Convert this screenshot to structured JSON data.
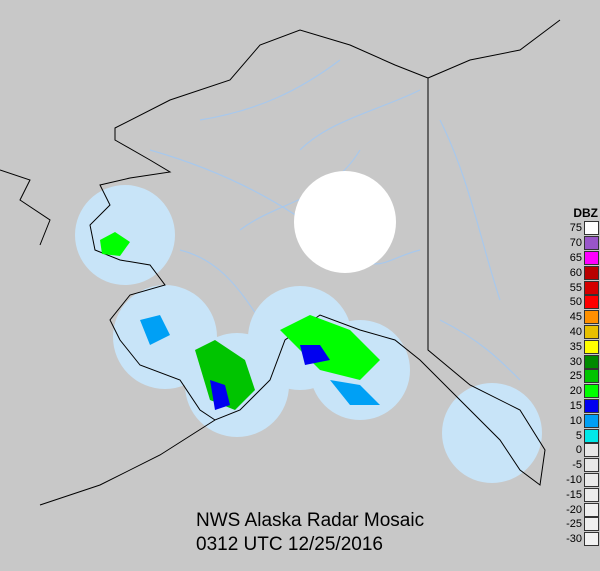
{
  "title": "NWS Alaska Radar Mosaic",
  "timestamp": "0312 UTC 12/25/2016",
  "legend": {
    "unit": "DBZ",
    "entries": [
      {
        "label": "75",
        "color": "#ffffff"
      },
      {
        "label": "70",
        "color": "#9955c9"
      },
      {
        "label": "65",
        "color": "#ff00ff"
      },
      {
        "label": "60",
        "color": "#b90000"
      },
      {
        "label": "55",
        "color": "#d40000"
      },
      {
        "label": "50",
        "color": "#ff0000"
      },
      {
        "label": "45",
        "color": "#ff9000"
      },
      {
        "label": "40",
        "color": "#e7c000"
      },
      {
        "label": "35",
        "color": "#ffff00"
      },
      {
        "label": "30",
        "color": "#008a00"
      },
      {
        "label": "25",
        "color": "#00c400"
      },
      {
        "label": "20",
        "color": "#00ff00"
      },
      {
        "label": "15",
        "color": "#0000f0"
      },
      {
        "label": "10",
        "color": "#00a0f5"
      },
      {
        "label": "5",
        "color": "#00e8e8"
      },
      {
        "label": "0",
        "color": "#e8e8e8"
      },
      {
        "label": "-5",
        "color": "#e8e8e8"
      },
      {
        "label": "-10",
        "color": "#eaeaea"
      },
      {
        "label": "-15",
        "color": "#ececec"
      },
      {
        "label": "-20",
        "color": "#eeeeee"
      },
      {
        "label": "-25",
        "color": "#f0f0f0"
      },
      {
        "label": "-30",
        "color": "#f2f2f2"
      }
    ]
  },
  "colors": {
    "background": "#c8c8c8",
    "radar_coverage": "#c8e4f8",
    "rivers": "#a8c8ec",
    "coastline": "#000000"
  }
}
